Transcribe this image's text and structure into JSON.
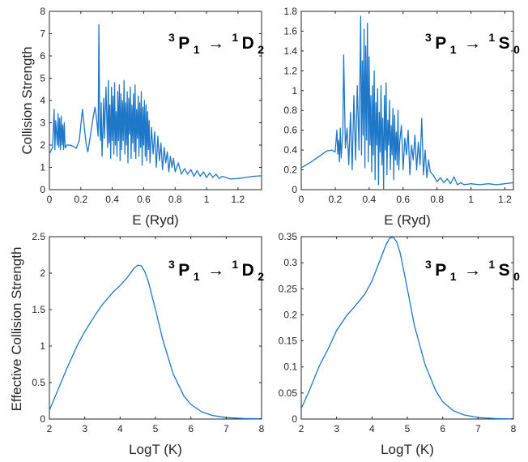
{
  "chart_data": [
    {
      "panel": "top-left",
      "type": "line",
      "ylabel": "Collision Strength",
      "xlabel": "E (Ryd)",
      "xlim": [
        0,
        1.35
      ],
      "ylim": [
        0,
        8
      ],
      "xticks": [
        0,
        0.2,
        0.4,
        0.6,
        0.8,
        1,
        1.2
      ],
      "yticks": [
        0,
        1,
        2,
        3,
        4,
        5,
        6,
        7,
        8
      ],
      "annotation": {
        "s1": "3",
        "b1": "P",
        "sub1": "1",
        "arrow": "→",
        "s2": "1",
        "b2": "D",
        "sub2": "2"
      },
      "series": [
        {
          "color": "#1f77c8",
          "x": [
            0,
            0.02,
            0.03,
            0.035,
            0.04,
            0.05,
            0.055,
            0.06,
            0.065,
            0.07,
            0.075,
            0.08,
            0.085,
            0.09,
            0.095,
            0.1,
            0.105,
            0.11,
            0.13,
            0.15,
            0.17,
            0.19,
            0.21,
            0.225,
            0.235,
            0.245,
            0.26,
            0.275,
            0.29,
            0.3,
            0.31,
            0.315,
            0.32,
            0.325,
            0.33,
            0.335,
            0.34,
            0.345,
            0.35,
            0.36,
            0.37,
            0.375,
            0.38,
            0.385,
            0.39,
            0.395,
            0.4,
            0.405,
            0.41,
            0.415,
            0.42,
            0.425,
            0.43,
            0.435,
            0.44,
            0.445,
            0.45,
            0.455,
            0.46,
            0.465,
            0.47,
            0.475,
            0.48,
            0.485,
            0.49,
            0.495,
            0.5,
            0.505,
            0.51,
            0.515,
            0.52,
            0.525,
            0.53,
            0.535,
            0.54,
            0.545,
            0.55,
            0.555,
            0.56,
            0.565,
            0.57,
            0.575,
            0.58,
            0.585,
            0.59,
            0.595,
            0.6,
            0.605,
            0.61,
            0.615,
            0.62,
            0.625,
            0.63,
            0.635,
            0.64,
            0.65,
            0.66,
            0.67,
            0.68,
            0.69,
            0.7,
            0.71,
            0.72,
            0.73,
            0.74,
            0.75,
            0.76,
            0.77,
            0.78,
            0.79,
            0.8,
            0.82,
            0.84,
            0.86,
            0.88,
            0.9,
            0.92,
            0.94,
            0.96,
            0.98,
            1.0,
            1.02,
            1.04,
            1.06,
            1.08,
            1.1,
            1.15,
            1.2,
            1.25,
            1.3,
            1.35
          ],
          "y": [
            1.6,
            1.9,
            3.6,
            1.8,
            3.1,
            2.0,
            3.4,
            1.9,
            3.2,
            1.8,
            3.3,
            2.0,
            2.9,
            1.8,
            3.0,
            1.9,
            1.9,
            2.0,
            2.0,
            1.95,
            1.85,
            2.2,
            3.6,
            2.6,
            2.0,
            1.7,
            2.4,
            3.1,
            3.7,
            3.2,
            2.4,
            7.4,
            3.0,
            2.2,
            3.9,
            1.5,
            2.6,
            4.1,
            2.3,
            4.6,
            1.9,
            4.9,
            2.1,
            3.8,
            1.4,
            4.6,
            2.2,
            4.2,
            1.6,
            4.8,
            2.0,
            3.5,
            1.5,
            4.4,
            2.2,
            4.7,
            1.3,
            4.3,
            1.8,
            4.0,
            2.2,
            4.9,
            1.6,
            3.9,
            2.0,
            4.4,
            1.2,
            4.1,
            2.5,
            4.6,
            1.4,
            3.8,
            2.1,
            4.3,
            1.7,
            4.7,
            1.4,
            3.6,
            2.3,
            4.2,
            1.5,
            3.9,
            1.9,
            4.4,
            1.1,
            3.7,
            2.0,
            4.0,
            1.5,
            3.8,
            1.3,
            3.5,
            1.8,
            3.1,
            1.2,
            2.8,
            1.6,
            2.6,
            1.0,
            2.4,
            1.3,
            2.1,
            0.9,
            1.9,
            1.2,
            1.7,
            0.8,
            1.5,
            1.0,
            1.4,
            0.8,
            1.2,
            0.7,
            0.95,
            0.7,
            0.9,
            0.6,
            0.85,
            0.6,
            0.8,
            0.55,
            0.75,
            0.55,
            0.7,
            0.5,
            0.6,
            0.48,
            0.5,
            0.55,
            0.6,
            0.62
          ]
        }
      ]
    },
    {
      "panel": "top-right",
      "type": "line",
      "ylabel": "",
      "xlabel": "E (Ryd)",
      "xlim": [
        0,
        1.25
      ],
      "ylim": [
        0,
        1.8
      ],
      "xticks": [
        0,
        0.2,
        0.4,
        0.6,
        0.8,
        1,
        1.2
      ],
      "yticks": [
        0,
        0.2,
        0.4,
        0.6,
        0.8,
        1,
        1.2,
        1.4,
        1.6,
        1.8
      ],
      "annotation": {
        "s1": "3",
        "b1": "P",
        "sub1": "1",
        "arrow": "→",
        "s2": "1",
        "b2": "S",
        "sub2": "0"
      },
      "series": [
        {
          "color": "#1f77c8",
          "x": [
            0,
            0.05,
            0.1,
            0.15,
            0.18,
            0.2,
            0.21,
            0.215,
            0.22,
            0.225,
            0.23,
            0.235,
            0.24,
            0.245,
            0.25,
            0.26,
            0.27,
            0.28,
            0.29,
            0.3,
            0.31,
            0.32,
            0.33,
            0.34,
            0.35,
            0.355,
            0.36,
            0.365,
            0.37,
            0.375,
            0.38,
            0.385,
            0.39,
            0.395,
            0.4,
            0.405,
            0.41,
            0.415,
            0.42,
            0.425,
            0.43,
            0.435,
            0.44,
            0.445,
            0.45,
            0.455,
            0.46,
            0.465,
            0.47,
            0.475,
            0.48,
            0.485,
            0.49,
            0.495,
            0.5,
            0.505,
            0.51,
            0.515,
            0.52,
            0.525,
            0.53,
            0.535,
            0.54,
            0.545,
            0.55,
            0.555,
            0.56,
            0.565,
            0.57,
            0.575,
            0.58,
            0.59,
            0.6,
            0.61,
            0.62,
            0.63,
            0.64,
            0.65,
            0.66,
            0.67,
            0.68,
            0.69,
            0.7,
            0.71,
            0.72,
            0.73,
            0.74,
            0.75,
            0.76,
            0.78,
            0.8,
            0.82,
            0.84,
            0.86,
            0.88,
            0.9,
            0.92,
            0.94,
            0.96,
            1.0,
            1.05,
            1.1,
            1.15,
            1.2,
            1.25
          ],
          "y": [
            0.22,
            0.27,
            0.33,
            0.39,
            0.4,
            0.38,
            0.6,
            0.36,
            0.5,
            0.28,
            0.62,
            0.32,
            0.45,
            0.58,
            1.36,
            0.42,
            0.62,
            0.25,
            0.78,
            0.2,
            0.95,
            0.3,
            1.05,
            0.4,
            1.75,
            0.35,
            1.3,
            0.55,
            1.62,
            0.22,
            1.45,
            0.5,
            1.68,
            0.28,
            1.34,
            0.45,
            0.95,
            0.18,
            1.05,
            0.35,
            1.2,
            0.1,
            0.88,
            0.45,
            1.02,
            0.05,
            0.78,
            0.38,
            1.05,
            0.25,
            0.72,
            0.0,
            0.95,
            0.4,
            1.08,
            0.15,
            0.7,
            0.45,
            0.9,
            0.2,
            0.65,
            0.35,
            0.82,
            0.1,
            0.75,
            0.3,
            0.58,
            0.25,
            0.8,
            0.2,
            0.48,
            0.65,
            0.2,
            0.52,
            0.35,
            0.6,
            0.15,
            0.45,
            0.3,
            0.55,
            0.2,
            0.48,
            0.25,
            0.72,
            0.15,
            0.4,
            0.12,
            0.3,
            0.18,
            0.14,
            0.08,
            0.12,
            0.07,
            0.11,
            0.06,
            0.13,
            0.05,
            0.07,
            0.05,
            0.06,
            0.05,
            0.06,
            0.05,
            0.06,
            0.07
          ]
        }
      ]
    },
    {
      "panel": "bottom-left",
      "type": "line",
      "ylabel": "Effective Collision Strength",
      "xlabel": "LogT (K)",
      "xlim": [
        2,
        8
      ],
      "ylim": [
        0,
        2.5
      ],
      "xticks": [
        2,
        3,
        4,
        5,
        6,
        7,
        8
      ],
      "yticks": [
        0,
        0.5,
        1,
        1.5,
        2,
        2.5
      ],
      "annotation": {
        "s1": "3",
        "b1": "P",
        "sub1": "1",
        "arrow": "→",
        "s2": "1",
        "b2": "D",
        "sub2": "2"
      },
      "series": [
        {
          "color": "#1f77c8",
          "x": [
            2,
            2.2,
            2.5,
            2.8,
            3.0,
            3.3,
            3.5,
            3.8,
            4.0,
            4.2,
            4.4,
            4.5,
            4.6,
            4.7,
            4.8,
            5.0,
            5.2,
            5.5,
            5.8,
            6.0,
            6.3,
            6.6,
            7.0,
            7.5,
            8.0
          ],
          "y": [
            0.12,
            0.35,
            0.7,
            1.02,
            1.2,
            1.43,
            1.57,
            1.74,
            1.83,
            1.94,
            2.07,
            2.11,
            2.1,
            2.02,
            1.88,
            1.5,
            1.1,
            0.62,
            0.32,
            0.2,
            0.1,
            0.05,
            0.02,
            0.008,
            0.003
          ]
        }
      ]
    },
    {
      "panel": "bottom-right",
      "type": "line",
      "ylabel": "",
      "xlabel": "LogT (K)",
      "xlim": [
        2,
        8
      ],
      "ylim": [
        0,
        0.35
      ],
      "xticks": [
        2,
        3,
        4,
        5,
        6,
        7,
        8
      ],
      "yticks": [
        0,
        0.05,
        0.1,
        0.15,
        0.2,
        0.25,
        0.3,
        0.35
      ],
      "annotation": {
        "s1": "3",
        "b1": "P",
        "sub1": "1",
        "arrow": "→",
        "s2": "1",
        "b2": "S",
        "sub2": "0"
      },
      "series": [
        {
          "color": "#1f77c8",
          "x": [
            2,
            2.2,
            2.5,
            2.8,
            3.0,
            3.3,
            3.5,
            3.8,
            4.0,
            4.2,
            4.4,
            4.5,
            4.6,
            4.7,
            4.8,
            5.0,
            5.2,
            5.5,
            5.8,
            6.0,
            6.3,
            6.6,
            7.0,
            7.5,
            8.0
          ],
          "y": [
            0.02,
            0.05,
            0.1,
            0.14,
            0.17,
            0.2,
            0.215,
            0.24,
            0.265,
            0.3,
            0.335,
            0.347,
            0.349,
            0.34,
            0.318,
            0.25,
            0.18,
            0.105,
            0.055,
            0.033,
            0.016,
            0.008,
            0.003,
            0.001,
            0.0003
          ]
        }
      ]
    }
  ]
}
